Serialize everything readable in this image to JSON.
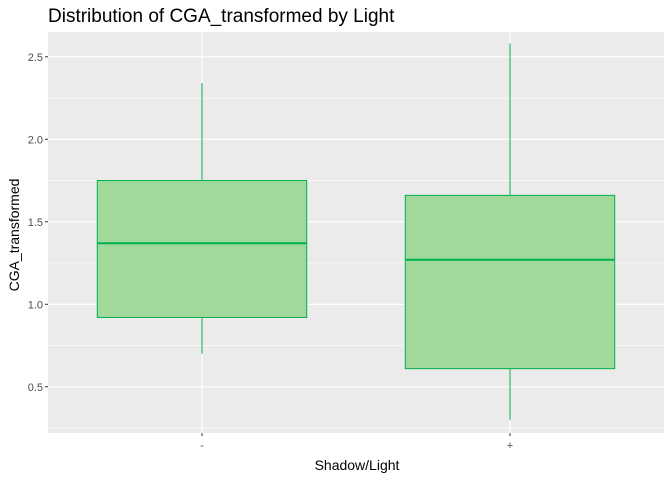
{
  "chart_data": {
    "type": "boxplot",
    "title": "Distribution of CGA_transformed by Light",
    "xlabel": "Shadow/Light",
    "ylabel": "CGA_transformed",
    "categories": [
      "-",
      "+"
    ],
    "ylim": [
      0.22,
      2.65
    ],
    "yticks": [
      0.5,
      1.0,
      1.5,
      2.0,
      2.5
    ],
    "ytick_labels": [
      "0.5",
      "1.0",
      "1.5",
      "2.0",
      "2.5"
    ],
    "boxes": [
      {
        "category": "-",
        "whisker_low": 0.7,
        "q1": 0.92,
        "median": 1.37,
        "q3": 1.75,
        "whisker_high": 2.34
      },
      {
        "category": "+",
        "whisker_low": 0.3,
        "q1": 0.61,
        "median": 1.27,
        "q3": 1.66,
        "whisker_high": 2.58
      }
    ],
    "grid": true,
    "colors": {
      "box_fill": "#a1d99b",
      "box_line": "#00b050",
      "panel": "#ebebeb",
      "grid": "#ffffff"
    }
  }
}
